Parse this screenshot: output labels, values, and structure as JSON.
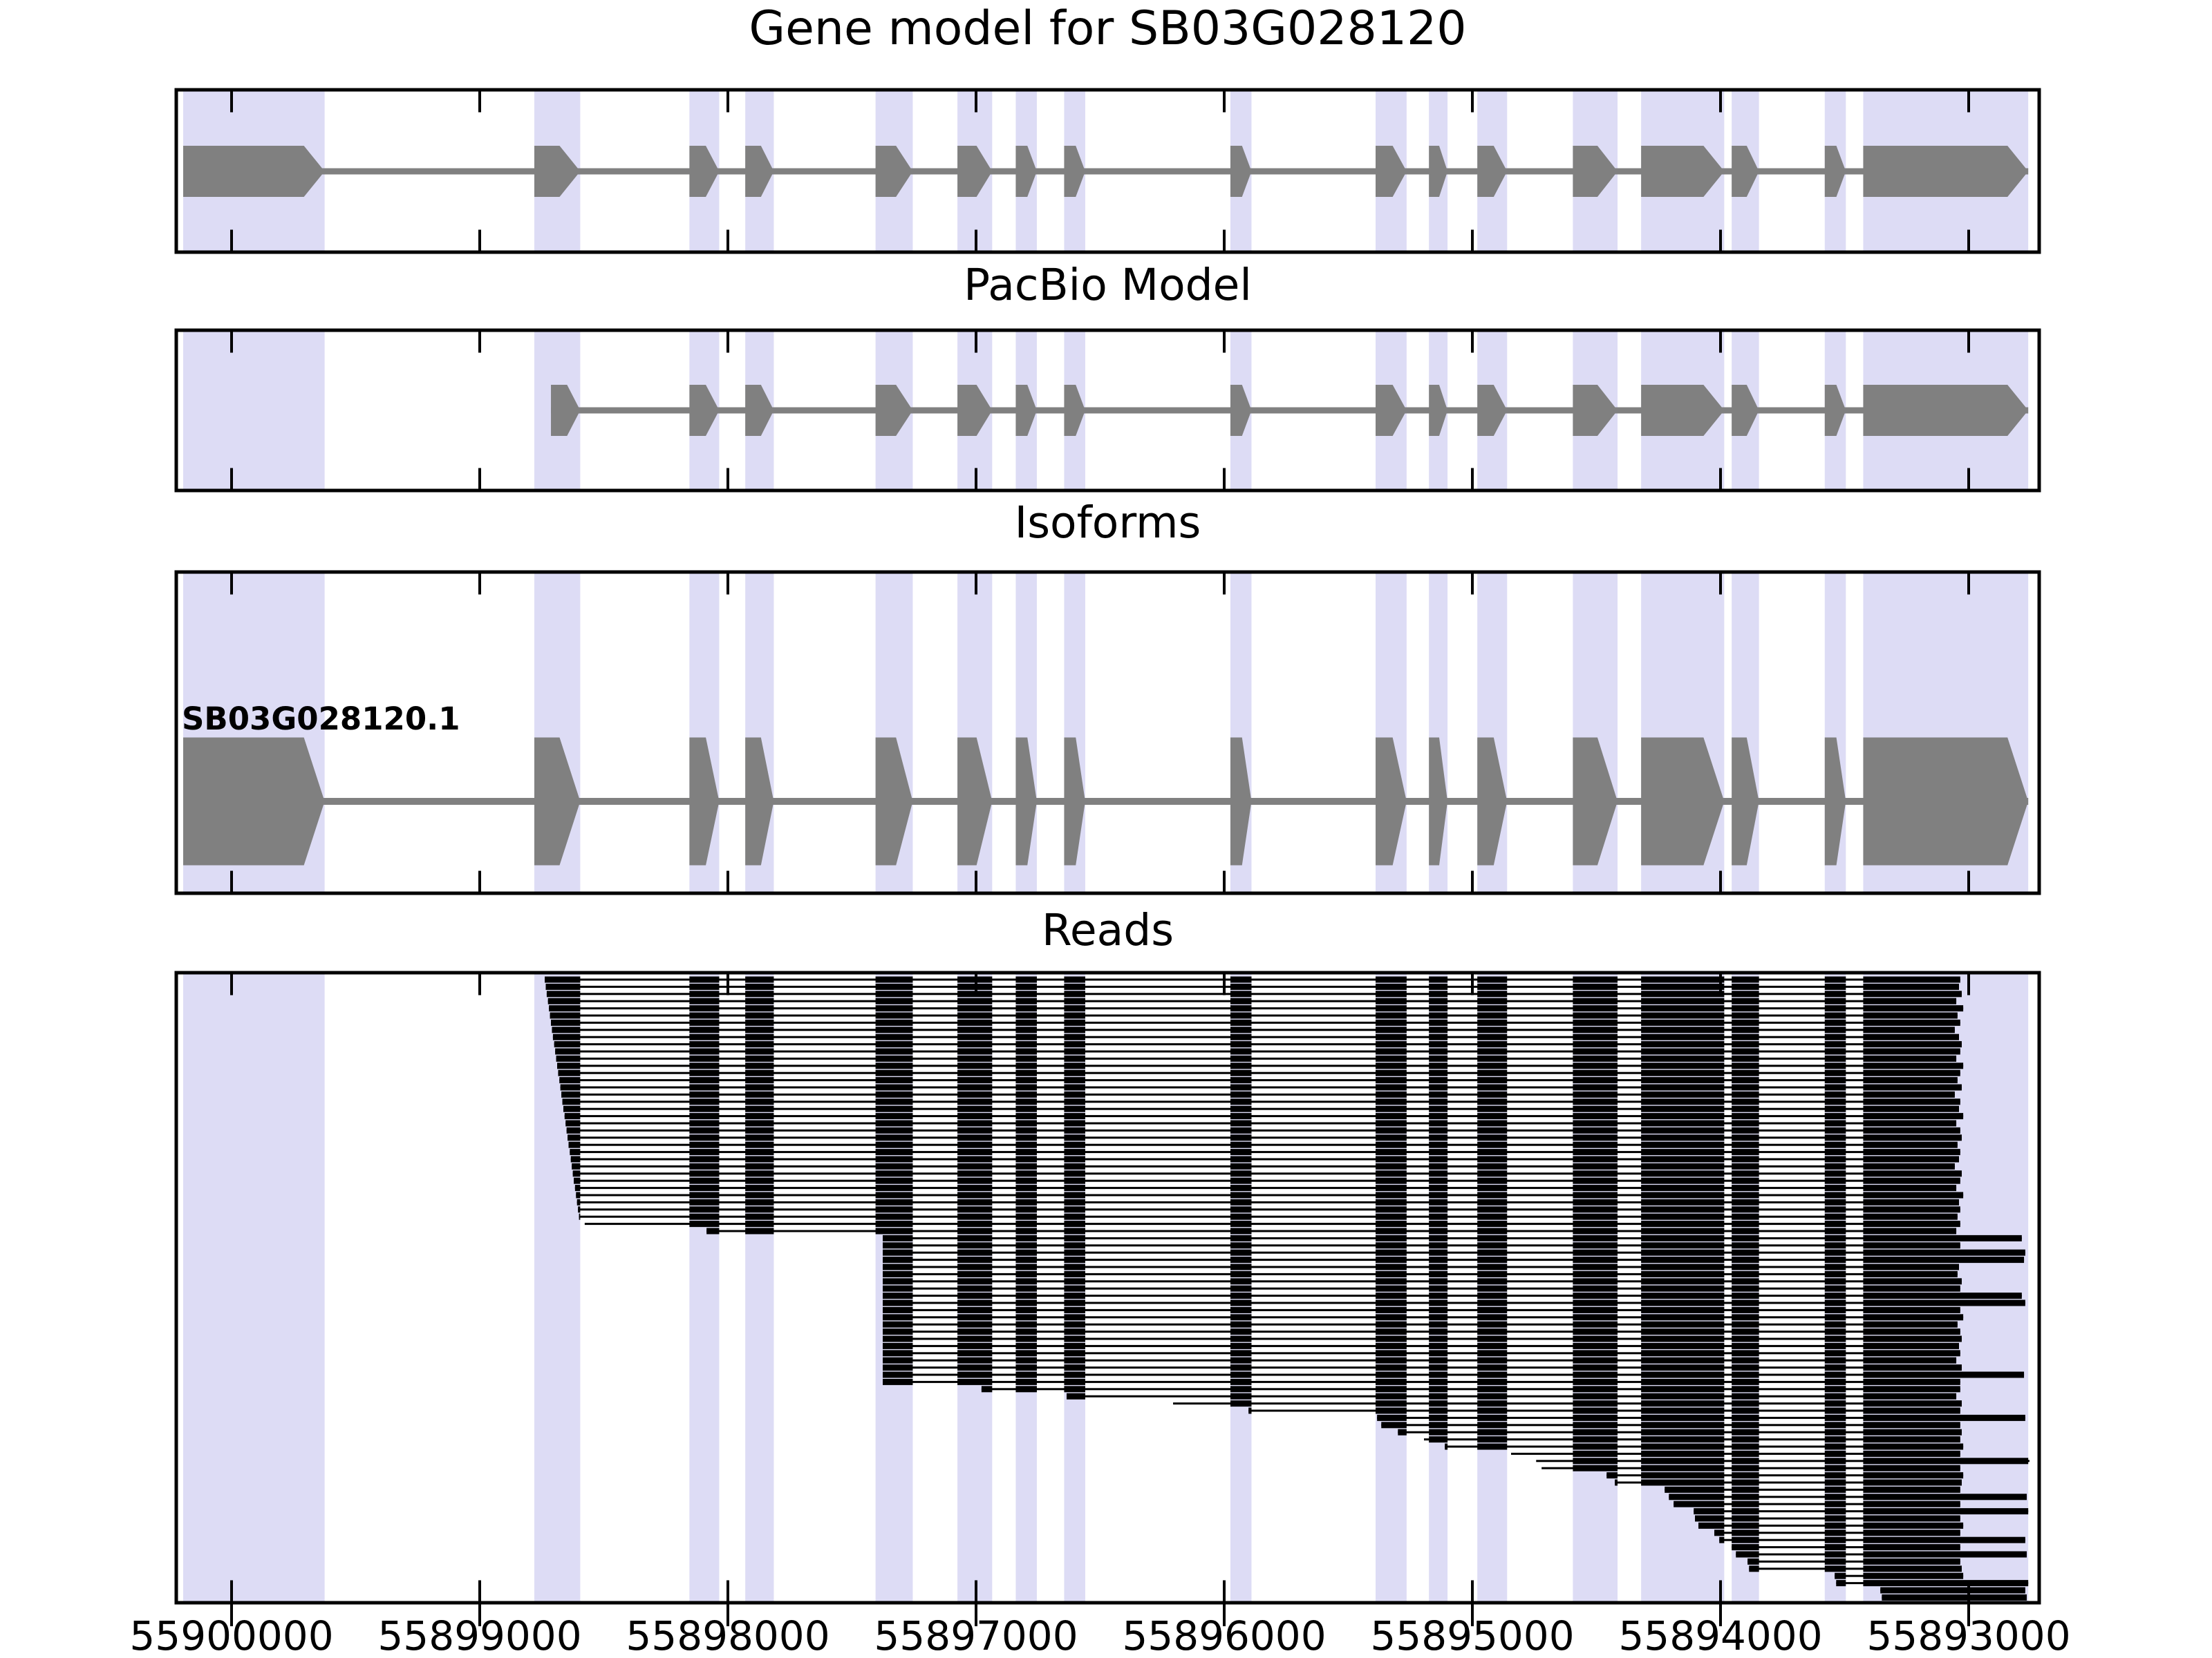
{
  "chart_data": {
    "type": "genome-browser",
    "title": "Gene model for SB03G028120",
    "colors": {
      "exon_fill": "#808080",
      "intron_line": "#808080",
      "highlight_band": "#dddcf5",
      "read_fill": "#000000",
      "spine": "#000000",
      "background": "#ffffff"
    },
    "x_axis": {
      "unit": "bp",
      "orientation": "reversed",
      "xlim": [
        55900215,
        55892720
      ],
      "tick_values": [
        55900000,
        55899000,
        55898000,
        55897000,
        55896000,
        55895000,
        55894000,
        55893000
      ],
      "tick_labels": [
        "55900000",
        "55899000",
        "55898000",
        "55897000",
        "55896000",
        "55895000",
        "55894000",
        "55893000"
      ]
    },
    "panels": {
      "gene_model": {
        "title": "Gene model for SB03G028120",
        "exons": [
          [
            55900195,
            55899625
          ],
          [
            55898780,
            55898595
          ],
          [
            55898155,
            55898035
          ],
          [
            55897930,
            55897815
          ],
          [
            55897405,
            55897255
          ],
          [
            55897075,
            55896935
          ],
          [
            55896840,
            55896755
          ],
          [
            55896645,
            55896560
          ],
          [
            55895975,
            55895890
          ],
          [
            55895390,
            55895265
          ],
          [
            55895175,
            55895100
          ],
          [
            55894980,
            55894860
          ],
          [
            55894595,
            55894415
          ],
          [
            55894320,
            55893985
          ],
          [
            55893955,
            55893845
          ],
          [
            55893580,
            55893495
          ],
          [
            55893425,
            55892760
          ]
        ]
      },
      "pacbio_model": {
        "title": "PacBio Model",
        "exons": [
          [
            55898713,
            55898595
          ],
          [
            55898155,
            55898035
          ],
          [
            55897930,
            55897815
          ],
          [
            55897405,
            55897255
          ],
          [
            55897075,
            55896935
          ],
          [
            55896840,
            55896755
          ],
          [
            55896645,
            55896560
          ],
          [
            55895975,
            55895890
          ],
          [
            55895390,
            55895265
          ],
          [
            55895175,
            55895100
          ],
          [
            55894980,
            55894860
          ],
          [
            55894595,
            55894415
          ],
          [
            55894320,
            55893985
          ],
          [
            55893955,
            55893845
          ],
          [
            55893580,
            55893495
          ],
          [
            55893425,
            55892760
          ]
        ]
      },
      "isoforms": {
        "title": "Isoforms",
        "isoform_label": "SB03G028120.1",
        "exons": [
          [
            55900195,
            55899625
          ],
          [
            55898780,
            55898595
          ],
          [
            55898155,
            55898035
          ],
          [
            55897930,
            55897815
          ],
          [
            55897405,
            55897255
          ],
          [
            55897075,
            55896935
          ],
          [
            55896840,
            55896755
          ],
          [
            55896645,
            55896560
          ],
          [
            55895975,
            55895890
          ],
          [
            55895390,
            55895265
          ],
          [
            55895175,
            55895100
          ],
          [
            55894980,
            55894860
          ],
          [
            55894595,
            55894415
          ],
          [
            55894320,
            55893985
          ],
          [
            55893955,
            55893845
          ],
          [
            55893580,
            55893495
          ],
          [
            55893425,
            55892760
          ]
        ]
      },
      "reads": {
        "title": "Reads",
        "count": 87,
        "reads": [
          [
            55898738,
            55893034
          ],
          [
            55898734,
            55893039
          ],
          [
            55898730,
            55893028
          ],
          [
            55898725,
            55893050
          ],
          [
            55898721,
            55893022
          ],
          [
            55898717,
            55893045
          ],
          [
            55898713,
            55893034
          ],
          [
            55898709,
            55893056
          ],
          [
            55898705,
            55893039
          ],
          [
            55898700,
            55893028
          ],
          [
            55898696,
            55893034
          ],
          [
            55898692,
            55893050
          ],
          [
            55898688,
            55893022
          ],
          [
            55898684,
            55893034
          ],
          [
            55898679,
            55893045
          ],
          [
            55898675,
            55893028
          ],
          [
            55898671,
            55893056
          ],
          [
            55898667,
            55893034
          ],
          [
            55898663,
            55893039
          ],
          [
            55898658,
            55893022
          ],
          [
            55898654,
            55893050
          ],
          [
            55898650,
            55893034
          ],
          [
            55898646,
            55893028
          ],
          [
            55898642,
            55893045
          ],
          [
            55898637,
            55893034
          ],
          [
            55898633,
            55893039
          ],
          [
            55898629,
            55893056
          ],
          [
            55898625,
            55893028
          ],
          [
            55898621,
            55893034
          ],
          [
            55898616,
            55893050
          ],
          [
            55898612,
            55893022
          ],
          [
            55898608,
            55893039
          ],
          [
            55898604,
            55893034
          ],
          [
            55898600,
            55893045
          ],
          [
            55898577,
            55893034
          ],
          [
            55898086,
            55893050
          ],
          [
            55897376,
            55892786
          ],
          [
            55897376,
            55893034
          ],
          [
            55897376,
            55892772
          ],
          [
            55897376,
            55892777
          ],
          [
            55897376,
            55893039
          ],
          [
            55897376,
            55893045
          ],
          [
            55897376,
            55893028
          ],
          [
            55897376,
            55893034
          ],
          [
            55897376,
            55892786
          ],
          [
            55897376,
            55892772
          ],
          [
            55897376,
            55893034
          ],
          [
            55897376,
            55893022
          ],
          [
            55897376,
            55893045
          ],
          [
            55897376,
            55893034
          ],
          [
            55897376,
            55893028
          ],
          [
            55897376,
            55893039
          ],
          [
            55897376,
            55893034
          ],
          [
            55897376,
            55893050
          ],
          [
            55897376,
            55893028
          ],
          [
            55897376,
            55892777
          ],
          [
            55897376,
            55893034
          ],
          [
            55896978,
            55893034
          ],
          [
            55896635,
            55893050
          ],
          [
            55896206,
            55893028
          ],
          [
            55895902,
            55893034
          ],
          [
            55895384,
            55892772
          ],
          [
            55895367,
            55893034
          ],
          [
            55895300,
            55893028
          ],
          [
            55895195,
            55893034
          ],
          [
            55895111,
            55893022
          ],
          [
            55894844,
            55893034
          ],
          [
            55894743,
            55892755
          ],
          [
            55894721,
            55893034
          ],
          [
            55894459,
            55893022
          ],
          [
            55894426,
            55893028
          ],
          [
            55894225,
            55893034
          ],
          [
            55894208,
            55892766
          ],
          [
            55894189,
            55893034
          ],
          [
            55894108,
            55892760
          ],
          [
            55894103,
            55893034
          ],
          [
            55894089,
            55893022
          ],
          [
            55894025,
            55893034
          ],
          [
            55894005,
            55892772
          ],
          [
            55893955,
            55893034
          ],
          [
            55893938,
            55892766
          ],
          [
            55893891,
            55893034
          ],
          [
            55893885,
            55893028
          ],
          [
            55893540,
            55893022
          ],
          [
            55893534,
            55892760
          ],
          [
            55893356,
            55892772
          ],
          [
            55893350,
            55892766
          ]
        ]
      }
    }
  }
}
